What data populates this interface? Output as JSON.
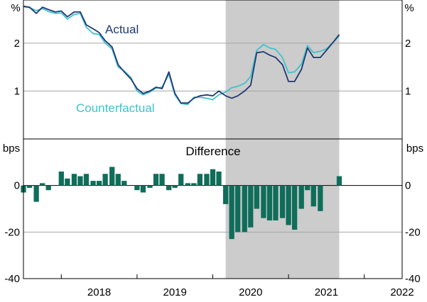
{
  "chart_data": [
    {
      "type": "line",
      "panel": "top",
      "unit_label": "%",
      "ylim": [
        0,
        2.9
      ],
      "yticks": [
        1,
        2
      ],
      "shaded_period": {
        "start": 2020.17,
        "end": 2021.67
      },
      "series": [
        {
          "name": "Actual",
          "color": "#1f3a73",
          "x": [
            2017.5,
            2017.58,
            2017.67,
            2017.75,
            2017.83,
            2017.92,
            2018.0,
            2018.08,
            2018.17,
            2018.25,
            2018.33,
            2018.42,
            2018.5,
            2018.58,
            2018.67,
            2018.75,
            2018.83,
            2018.92,
            2019.0,
            2019.08,
            2019.17,
            2019.25,
            2019.33,
            2019.42,
            2019.5,
            2019.58,
            2019.67,
            2019.75,
            2019.83,
            2019.92,
            2020.0,
            2020.08,
            2020.17,
            2020.25,
            2020.33,
            2020.42,
            2020.5,
            2020.58,
            2020.67,
            2020.75,
            2020.83,
            2020.92,
            2021.0,
            2021.08,
            2021.17,
            2021.25,
            2021.33,
            2021.42,
            2021.5,
            2021.58,
            2021.67
          ],
          "y": [
            2.77,
            2.75,
            2.62,
            2.75,
            2.7,
            2.65,
            2.67,
            2.55,
            2.65,
            2.65,
            2.38,
            2.3,
            2.22,
            2.05,
            1.92,
            1.55,
            1.4,
            1.25,
            1.05,
            0.95,
            1.0,
            1.08,
            1.05,
            1.4,
            0.95,
            0.75,
            0.75,
            0.85,
            0.9,
            0.92,
            0.9,
            1.0,
            0.9,
            0.85,
            0.9,
            1.0,
            1.12,
            1.8,
            1.82,
            1.75,
            1.7,
            1.55,
            1.2,
            1.2,
            1.45,
            1.9,
            1.7,
            1.7,
            1.85,
            2.0,
            2.18
          ]
        },
        {
          "name": "Counterfactual",
          "color": "#3fc3cc",
          "x": [
            2017.5,
            2017.58,
            2017.67,
            2017.75,
            2017.83,
            2017.92,
            2018.0,
            2018.08,
            2018.17,
            2018.25,
            2018.33,
            2018.42,
            2018.5,
            2018.58,
            2018.67,
            2018.75,
            2018.83,
            2018.92,
            2019.0,
            2019.08,
            2019.17,
            2019.25,
            2019.33,
            2019.42,
            2019.5,
            2019.58,
            2019.67,
            2019.75,
            2019.83,
            2019.92,
            2020.0,
            2020.08,
            2020.17,
            2020.25,
            2020.33,
            2020.42,
            2020.5,
            2020.58,
            2020.67,
            2020.75,
            2020.83,
            2020.92,
            2021.0,
            2021.08,
            2021.17,
            2021.25,
            2021.33,
            2021.42,
            2021.5,
            2021.58,
            2021.67
          ],
          "y": [
            2.76,
            2.74,
            2.68,
            2.72,
            2.66,
            2.62,
            2.63,
            2.5,
            2.6,
            2.62,
            2.33,
            2.2,
            2.18,
            2.0,
            1.88,
            1.5,
            1.42,
            1.28,
            1.0,
            0.92,
            0.98,
            1.06,
            1.08,
            1.35,
            0.92,
            0.74,
            0.72,
            0.87,
            0.87,
            0.85,
            0.82,
            0.92,
            0.98,
            1.07,
            1.1,
            1.16,
            1.3,
            1.85,
            1.97,
            1.9,
            1.87,
            1.7,
            1.38,
            1.4,
            1.56,
            1.95,
            1.8,
            1.83,
            1.88,
            2.0,
            2.15
          ]
        }
      ],
      "annotations": [
        {
          "text": "Actual",
          "series": "Actual"
        },
        {
          "text": "Counterfactual",
          "series": "Counterfactual"
        }
      ]
    },
    {
      "type": "bar",
      "panel": "bottom",
      "title": "Difference",
      "unit_label": "bps",
      "ylim": [
        -40,
        20
      ],
      "yticks": [
        0,
        -20,
        -40
      ],
      "color": "#0f6d5a",
      "x": [
        2017.5,
        2017.58,
        2017.67,
        2017.75,
        2017.83,
        2017.92,
        2018.0,
        2018.08,
        2018.17,
        2018.25,
        2018.33,
        2018.42,
        2018.5,
        2018.58,
        2018.67,
        2018.75,
        2018.83,
        2018.92,
        2019.0,
        2019.08,
        2019.17,
        2019.25,
        2019.33,
        2019.42,
        2019.5,
        2019.58,
        2019.67,
        2019.75,
        2019.83,
        2019.92,
        2020.0,
        2020.08,
        2020.17,
        2020.25,
        2020.33,
        2020.42,
        2020.5,
        2020.58,
        2020.67,
        2020.75,
        2020.83,
        2020.92,
        2021.0,
        2021.08,
        2021.17,
        2021.25,
        2021.33,
        2021.42,
        2021.5,
        2021.58,
        2021.67
      ],
      "values": [
        -3,
        -1,
        -7,
        1,
        -2,
        0,
        6,
        3,
        5,
        4,
        5,
        2,
        2,
        5,
        8,
        5,
        2,
        0,
        -2,
        -3,
        -1,
        5,
        5,
        -2,
        -1,
        5,
        1,
        1,
        5,
        5,
        7,
        6,
        -8,
        -23,
        -20,
        -20,
        -18,
        -10,
        -14,
        -15,
        -15,
        -14,
        -17,
        -19,
        -10,
        -2,
        -9,
        -11,
        0,
        0,
        4
      ],
      "shaded_period": {
        "start": 2020.17,
        "end": 2021.67
      }
    }
  ],
  "x_axis": {
    "ticks": [
      "2018",
      "2019",
      "2020",
      "2021",
      "2022"
    ],
    "range": [
      2017.5,
      2022.5
    ]
  }
}
